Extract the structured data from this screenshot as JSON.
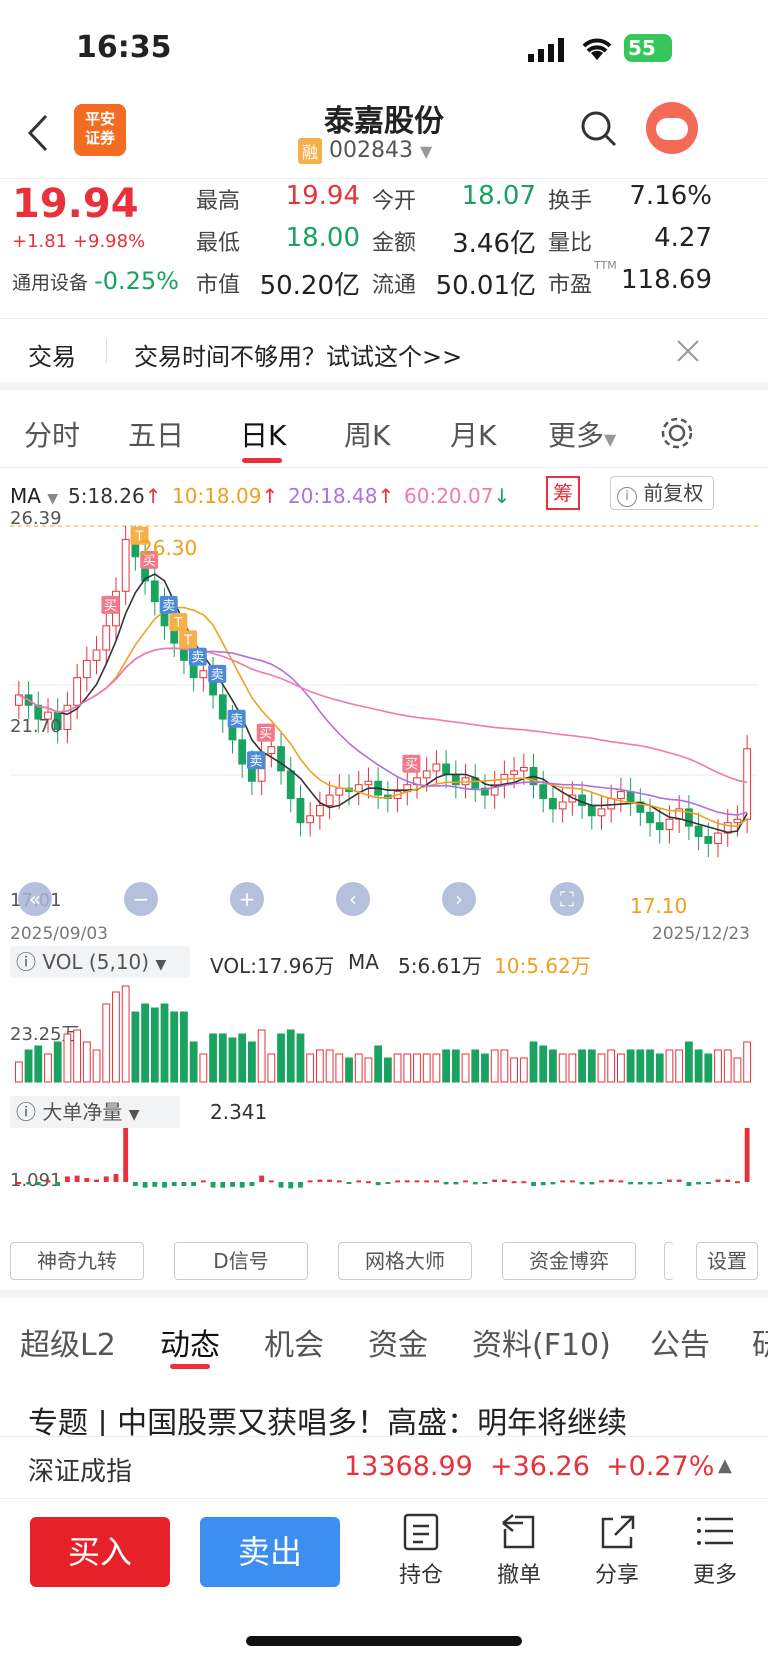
{
  "status_bar": {
    "time": "16:35",
    "battery": "55"
  },
  "header": {
    "title": "泰嘉股份",
    "code": "002843",
    "margin_tag": "融",
    "broker_logo_line1": "平安",
    "broker_logo_line2": "证券"
  },
  "quote": {
    "price": "19.94",
    "change": "+1.81",
    "change_pct": "+9.98%",
    "sector": "通用设备",
    "sector_pct": "-0.25%",
    "cells": [
      {
        "label": "最高",
        "value": "19.94"
      },
      {
        "label": "今开",
        "value": "18.07"
      },
      {
        "label": "换手",
        "value": "7.16%"
      },
      {
        "label": "最低",
        "value": "18.00"
      },
      {
        "label": "金额",
        "value": "3.46亿"
      },
      {
        "label": "量比",
        "value": "4.27"
      },
      {
        "label": "市值",
        "value": "50.20亿"
      },
      {
        "label": "流通",
        "value": "50.01亿"
      },
      {
        "label": "市盈",
        "value": "118.69"
      }
    ],
    "pe_tag": "TTM"
  },
  "notice": {
    "label": "交易",
    "text": "交易时间不够用？试试这个>>"
  },
  "chart_tabs": [
    "分时",
    "五日",
    "日K",
    "周K",
    "月K",
    "更多"
  ],
  "ma_legend": {
    "title": "MA",
    "ma5": "5:18.26",
    "ma10": "10:18.09",
    "ma20": "20:18.48",
    "ma60": "60:20.07",
    "chip_btn": "筹",
    "adjust_btn": "前复权",
    "colors": {
      "ma5": "#333333",
      "ma10": "#f0a020",
      "ma20": "#b070e0",
      "ma60": "#f07ab0"
    }
  },
  "chart_data": [
    {
      "type": "candlestick",
      "title": "日K",
      "y_labels": [
        "26.39",
        "21.70",
        "17.01"
      ],
      "high_mark": "26.30",
      "low_mark": "17.10",
      "x_start": "2025/09/03",
      "x_end": "2025/12/23",
      "signals": [
        "T",
        "买",
        "卖",
        "T",
        "买",
        "卖",
        "T",
        "卖",
        "买",
        "卖",
        "卖",
        "买"
      ],
      "closes": [
        21.5,
        21.2,
        20.8,
        21.0,
        20.5,
        21.2,
        22.0,
        22.5,
        22.8,
        23.5,
        24.5,
        26.0,
        25.5,
        24.8,
        24.2,
        23.5,
        23.0,
        22.5,
        22.0,
        22.2,
        21.5,
        20.8,
        20.2,
        19.5,
        19.0,
        19.8,
        20.0,
        19.3,
        18.5,
        17.8,
        18.0,
        18.3,
        18.6,
        18.8,
        18.7,
        18.9,
        19.0,
        18.6,
        18.5,
        18.7,
        18.9,
        19.1,
        19.3,
        19.5,
        19.2,
        18.9,
        19.1,
        18.8,
        18.6,
        18.9,
        19.2,
        19.3,
        19.4,
        18.9,
        18.5,
        18.2,
        18.4,
        18.6,
        18.3,
        18.0,
        18.2,
        18.5,
        18.7,
        18.4,
        18.1,
        17.8,
        17.6,
        17.9,
        18.2,
        17.7,
        17.4,
        17.2,
        17.5,
        17.8,
        17.9,
        19.94
      ]
    }
  ],
  "volume": {
    "label": "VOL (5,10)",
    "vol": "VOL:17.96万",
    "ma_label": "MA",
    "ma5": "5:6.61万",
    "ma10": "10:5.62万",
    "y_label": "23.25万"
  },
  "big_order": {
    "label": "大单净量",
    "value": "2.341",
    "y_label": "1.091"
  },
  "indicator_buttons": [
    "神奇九转",
    "D信号",
    "网格大师",
    "资金博弈",
    "设置"
  ],
  "bottom_tabs": [
    "超级L2",
    "动态",
    "机会",
    "资金",
    "资料(F10)",
    "公告",
    "研"
  ],
  "news_headline": "专题 | 中国股票又获唱多！高盛：明年将继续",
  "index_bar": {
    "name": "深证成指",
    "value": "13368.99",
    "change": "+36.26",
    "pct": "+0.27%"
  },
  "toolbar": {
    "buy": "买入",
    "sell": "卖出",
    "hold": "持仓",
    "cancel": "撤单",
    "share": "分享",
    "more": "更多"
  }
}
